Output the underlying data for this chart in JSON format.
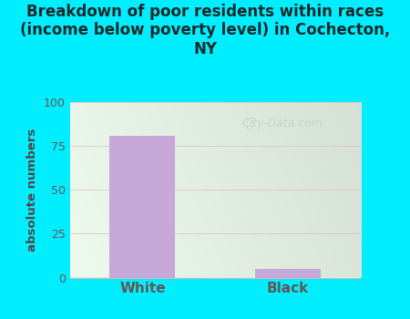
{
  "categories": [
    "White",
    "Black"
  ],
  "values": [
    81,
    5
  ],
  "bar_color": "#c8a8d8",
  "title": "Breakdown of poor residents within races\n(income below poverty level) in Cochecton,\nNY",
  "ylabel": "absolute numbers",
  "ylim": [
    0,
    100
  ],
  "yticks": [
    0,
    25,
    50,
    75,
    100
  ],
  "background_outer": "#00eeff",
  "background_plot_topleft": "#e0f0e0",
  "background_plot_topright": "#f0f8f0",
  "background_plot_bottom": "#d8ecd8",
  "title_fontsize": 12,
  "title_color": "#1a2a2a",
  "axis_label_color": "#554444",
  "tick_color": "#665555",
  "grid_color": "#ddbbbb",
  "watermark": "City-Data.com",
  "watermark_color": "#b8ccc8"
}
